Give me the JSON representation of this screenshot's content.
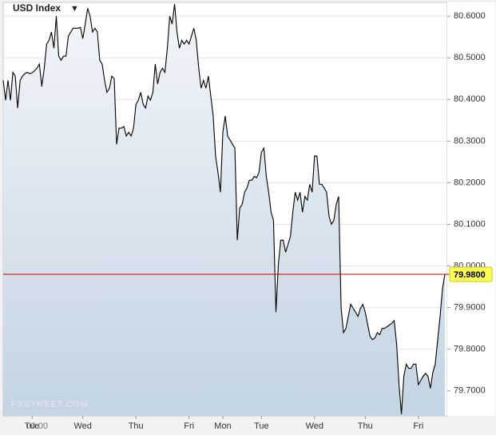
{
  "chart_data": {
    "type": "area",
    "title": "USD Index",
    "menu_icon": "▼",
    "watermark": "FXSTREET.COM",
    "session_label": "00:00",
    "series": [
      {
        "name": "USD Index",
        "color": "#000000",
        "values": [
          80.446,
          80.398,
          80.446,
          80.398,
          80.465,
          80.456,
          80.379,
          80.446,
          80.456,
          80.462,
          80.465,
          80.462,
          80.464,
          80.469,
          80.475,
          80.485,
          80.431,
          80.475,
          80.533,
          80.542,
          80.562,
          80.523,
          80.6,
          80.504,
          80.494,
          80.504,
          80.504,
          80.552,
          80.562,
          80.571,
          80.571,
          80.571,
          80.573,
          80.546,
          80.581,
          80.619,
          80.6,
          80.562,
          80.571,
          80.562,
          80.494,
          80.485,
          80.446,
          80.417,
          80.427,
          80.456,
          80.45,
          80.292,
          80.331,
          80.331,
          80.335,
          80.312,
          80.321,
          80.312,
          80.331,
          80.388,
          80.398,
          80.417,
          80.388,
          80.379,
          80.408,
          80.398,
          80.417,
          80.485,
          80.437,
          80.465,
          80.475,
          80.465,
          80.523,
          80.6,
          80.581,
          80.629,
          80.562,
          80.523,
          80.542,
          80.533,
          80.542,
          80.533,
          80.552,
          80.571,
          80.542,
          80.475,
          80.427,
          80.446,
          80.427,
          80.456,
          80.408,
          80.36,
          80.264,
          80.225,
          80.177,
          80.321,
          80.36,
          80.312,
          80.302,
          80.292,
          80.283,
          80.062,
          80.139,
          80.148,
          80.177,
          80.187,
          80.206,
          80.206,
          80.215,
          80.212,
          80.225,
          80.273,
          80.283,
          80.215,
          80.177,
          80.129,
          80.11,
          79.889,
          80.004,
          80.062,
          80.062,
          80.033,
          80.052,
          80.071,
          80.129,
          80.177,
          80.158,
          80.177,
          80.129,
          80.167,
          80.158,
          80.196,
          80.177,
          80.264,
          80.264,
          80.196,
          80.196,
          80.187,
          80.177,
          80.119,
          80.1,
          80.11,
          80.148,
          80.167,
          79.898,
          79.84,
          79.85,
          79.879,
          79.908,
          79.898,
          79.889,
          79.879,
          79.898,
          79.908,
          79.889,
          79.86,
          79.831,
          79.823,
          79.827,
          79.84,
          79.835,
          79.85,
          79.85,
          79.854,
          79.858,
          79.862,
          79.869,
          79.812,
          79.715,
          79.644,
          79.735,
          79.764,
          79.754,
          79.754,
          79.764,
          79.764,
          79.715,
          79.725,
          79.735,
          79.742,
          79.735,
          79.706,
          79.744,
          79.764,
          79.821,
          79.879,
          79.946,
          79.98
        ]
      }
    ],
    "last_value": {
      "value": 79.98,
      "label": "79.9800",
      "color": "#cc0000"
    },
    "xlim": [
      0,
      183
    ],
    "xticks": [
      {
        "value": 12,
        "label": "Tue"
      },
      {
        "value": 33,
        "label": "Wed"
      },
      {
        "value": 55,
        "label": "Thu"
      },
      {
        "value": 77,
        "label": "Fri"
      },
      {
        "value": 91,
        "label": "Mon"
      },
      {
        "value": 107,
        "label": "Tue"
      },
      {
        "value": 129,
        "label": "Wed"
      },
      {
        "value": 150,
        "label": "Thu"
      },
      {
        "value": 172,
        "label": "Fri"
      }
    ],
    "ylim": [
      79.64,
      80.633
    ],
    "yticks": [
      {
        "value": 79.7,
        "label": "79.7000"
      },
      {
        "value": 79.8,
        "label": "79.8000"
      },
      {
        "value": 79.9,
        "label": "79.9000"
      },
      {
        "value": 80.0,
        "label": "80.0000"
      },
      {
        "value": 80.1,
        "label": "80.1000"
      },
      {
        "value": 80.2,
        "label": "80.2000"
      },
      {
        "value": 80.3,
        "label": "80.3000"
      },
      {
        "value": 80.4,
        "label": "80.4000"
      },
      {
        "value": 80.5,
        "label": "80.5000"
      },
      {
        "value": 80.6,
        "label": "80.6000"
      }
    ],
    "grid": true
  }
}
